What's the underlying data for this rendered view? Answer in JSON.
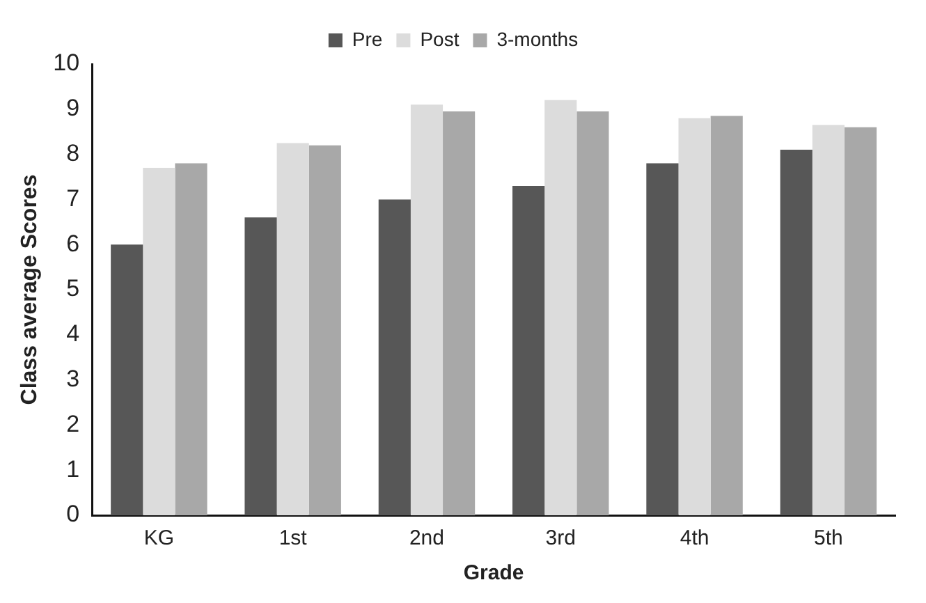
{
  "chart_data": {
    "type": "bar",
    "xlabel": "Grade",
    "ylabel": "Class average Scores",
    "categories": [
      "KG",
      "1st",
      "2nd",
      "3rd",
      "4th",
      "5th"
    ],
    "series": [
      {
        "name": "Pre",
        "color": "#575757",
        "values": [
          6.0,
          6.6,
          7.0,
          7.3,
          7.8,
          8.1
        ]
      },
      {
        "name": "Post",
        "color": "#dcdcdc",
        "values": [
          7.7,
          8.25,
          9.1,
          9.2,
          8.8,
          8.65
        ]
      },
      {
        "name": "3-months",
        "color": "#a8a8a8",
        "values": [
          7.8,
          8.2,
          8.95,
          8.95,
          8.85,
          8.6
        ]
      }
    ],
    "ylim": [
      0,
      10
    ],
    "yticks": [
      0,
      1,
      2,
      3,
      4,
      5,
      6,
      7,
      8,
      9,
      10
    ],
    "grid": false,
    "legend": "top"
  }
}
